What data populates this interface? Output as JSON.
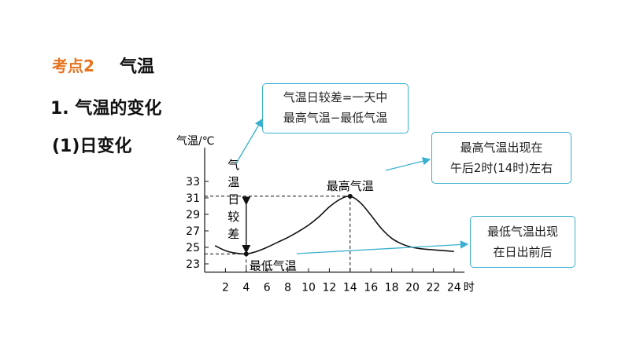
{
  "slide": {
    "kaodian_label": "考点2",
    "topic": "气温",
    "section": "1. 气温的变化",
    "subsection": "(1)日变化"
  },
  "callouts": {
    "daily_range_line1": "气温日较差=一天中",
    "daily_range_line2": "最高气温−最低气温",
    "max_line1": "最高气温出现在",
    "max_line2": "午后2时(14时)左右",
    "min_line1": "最低气温出现",
    "min_line2": "在日出前后"
  },
  "colors": {
    "accent": "#e8731c",
    "callout_border": "#3ab0cf"
  },
  "chart_data": {
    "type": "line",
    "ylabel": "气温/℃",
    "xlabel": "时",
    "x_ticks": [
      "2",
      "4",
      "6",
      "8",
      "10",
      "12",
      "14",
      "16",
      "18",
      "20",
      "22",
      "24"
    ],
    "y_ticks": [
      "33",
      "31",
      "29",
      "27",
      "25",
      "23"
    ],
    "xlim": [
      0,
      25
    ],
    "ylim": [
      22,
      34
    ],
    "series": [
      {
        "x": [
          1,
          2,
          3,
          4,
          5,
          6,
          7,
          8,
          9,
          10,
          11,
          12,
          13,
          14,
          15,
          16,
          17,
          18,
          19,
          20,
          21,
          22,
          23,
          24
        ],
        "y": [
          25.2,
          24.6,
          24.3,
          24.2,
          24.5,
          25.0,
          25.6,
          26.2,
          26.9,
          27.7,
          28.7,
          29.9,
          30.8,
          31.2,
          30.4,
          28.9,
          27.3,
          26.1,
          25.4,
          25.0,
          24.8,
          24.7,
          24.6,
          24.5
        ]
      }
    ],
    "annotations": {
      "max_label": "最高气温",
      "min_label": "最低气温",
      "range_label": [
        "气",
        "温",
        "日",
        "较",
        "差"
      ],
      "max_point": {
        "x": 14,
        "y": 31.2
      },
      "min_point": {
        "x": 4,
        "y": 24.2
      }
    }
  }
}
